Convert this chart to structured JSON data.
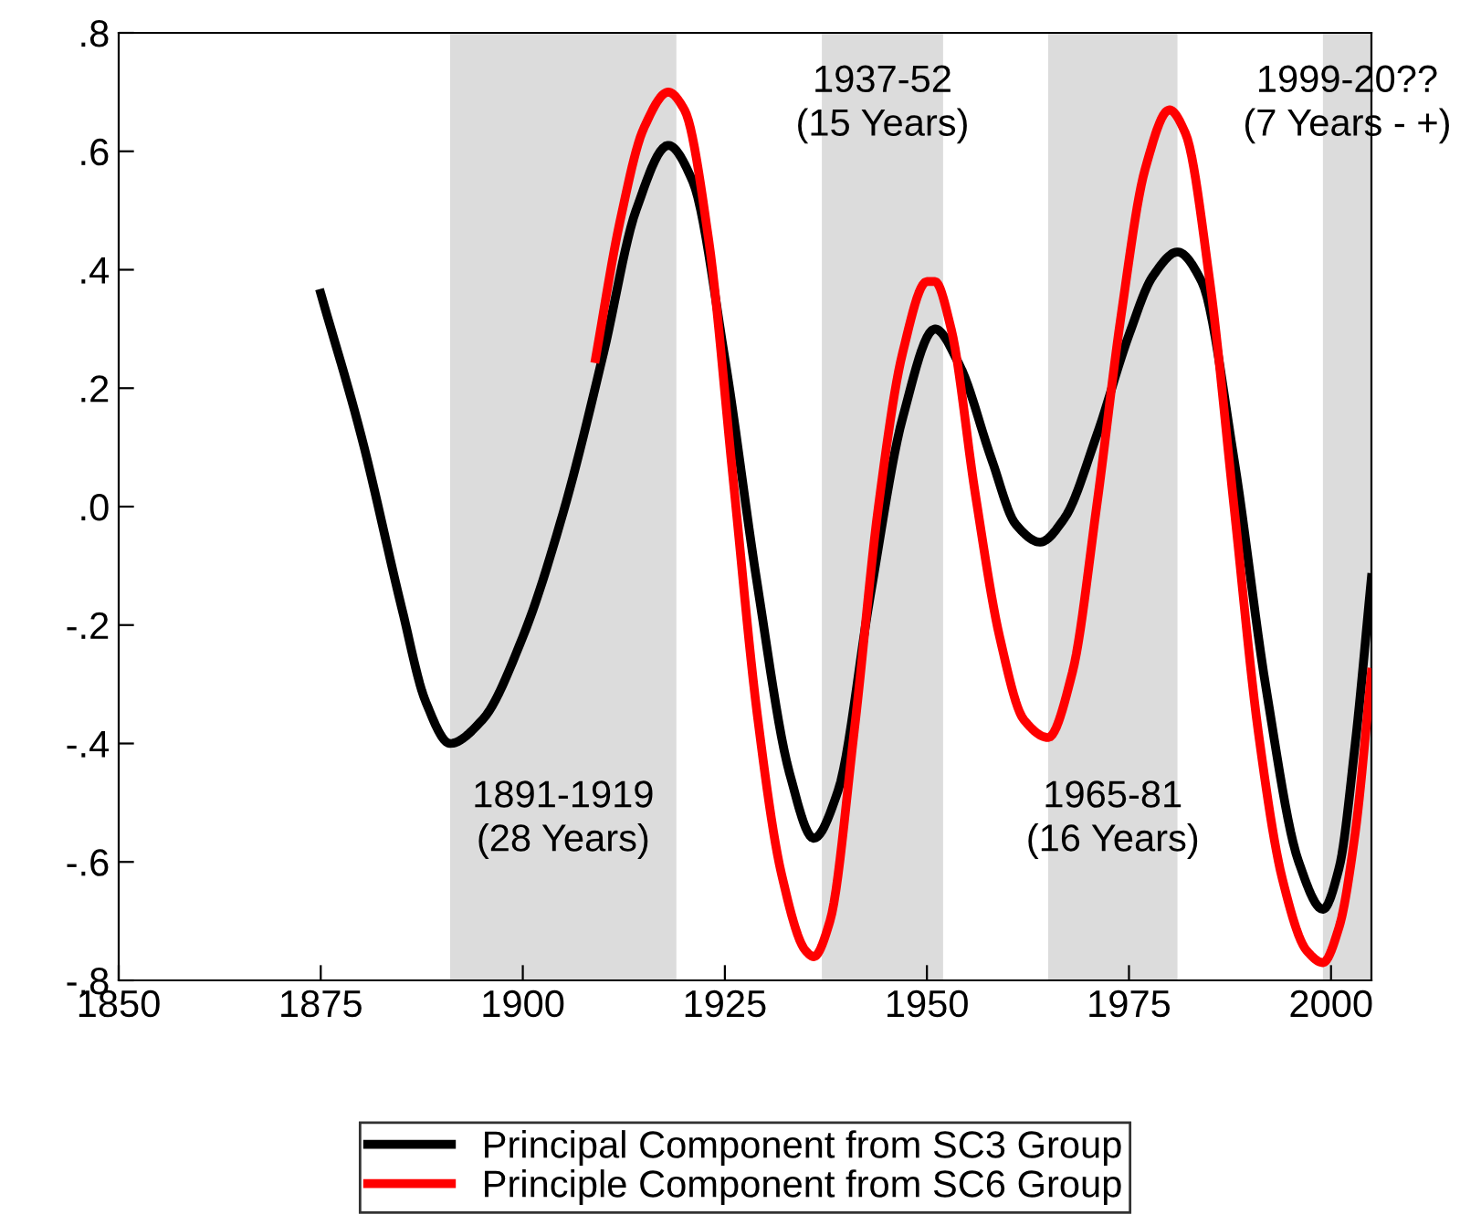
{
  "chart_data": {
    "type": "line",
    "legend": "bottom",
    "grid": false,
    "xlim": [
      1850,
      2005
    ],
    "xticks": [
      1850,
      1875,
      1900,
      1925,
      1950,
      1975,
      2000
    ],
    "ylim": [
      -0.8,
      0.8
    ],
    "yticks": [
      {
        "value": -0.8,
        "label": "-.8"
      },
      {
        "value": -0.6,
        "label": "-.6"
      },
      {
        "value": -0.4,
        "label": "-.4"
      },
      {
        "value": -0.2,
        "label": "-.2"
      },
      {
        "value": 0,
        "label": ".0"
      },
      {
        "value": 0.2,
        "label": ".2"
      },
      {
        "value": 0.4,
        "label": ".4"
      },
      {
        "value": 0.6,
        "label": ".6"
      },
      {
        "value": 0.8,
        "label": ".8"
      }
    ],
    "series": [
      {
        "name": "Principal Component from SC3 Group",
        "color": "#000000",
        "x": [
          1875,
          1880,
          1885,
          1888,
          1891,
          1895,
          1900,
          1905,
          1910,
          1914,
          1918,
          1921,
          1925,
          1929,
          1933,
          1936,
          1939,
          1943,
          1947,
          1951,
          1954,
          1958,
          1961,
          1964,
          1967,
          1971,
          1975,
          1978,
          1981,
          1984,
          1988,
          1992,
          1996,
          1999,
          2001,
          2003,
          2005
        ],
        "values": [
          0.36,
          0.12,
          -0.17,
          -0.33,
          -0.4,
          -0.36,
          -0.22,
          -0.01,
          0.26,
          0.5,
          0.61,
          0.55,
          0.25,
          -0.13,
          -0.45,
          -0.56,
          -0.48,
          -0.15,
          0.15,
          0.3,
          0.24,
          0.08,
          -0.03,
          -0.06,
          -0.02,
          0.12,
          0.29,
          0.39,
          0.43,
          0.38,
          0.08,
          -0.31,
          -0.6,
          -0.68,
          -0.61,
          -0.4,
          -0.12
        ]
      },
      {
        "name": "Principle Component from SC6 Group",
        "color": "#ff0000",
        "x": [
          1909,
          1912,
          1915,
          1918,
          1920,
          1923,
          1926,
          1929,
          1932,
          1935,
          1936,
          1938,
          1941,
          1944,
          1947,
          1950,
          1951,
          1953,
          1956,
          1959,
          1962,
          1965,
          1968,
          1971,
          1974,
          1977,
          1980,
          1982,
          1985,
          1988,
          1991,
          1994,
          1997,
          1999,
          2001,
          2003,
          2005
        ],
        "values": [
          0.25,
          0.48,
          0.64,
          0.7,
          0.67,
          0.45,
          0.05,
          -0.35,
          -0.62,
          -0.75,
          -0.76,
          -0.7,
          -0.38,
          0.0,
          0.26,
          0.38,
          0.38,
          0.3,
          0.02,
          -0.22,
          -0.36,
          -0.39,
          -0.28,
          0.0,
          0.32,
          0.57,
          0.67,
          0.63,
          0.38,
          0.0,
          -0.38,
          -0.63,
          -0.75,
          -0.77,
          -0.71,
          -0.55,
          -0.28
        ]
      }
    ],
    "bands": [
      {
        "axis": "x",
        "from": 1891,
        "to": 1919,
        "color": "#dcdcdc",
        "label": "1891-1919\n(28 Years)"
      },
      {
        "axis": "x",
        "from": 1937,
        "to": 1952,
        "color": "#dcdcdc",
        "label": "1937-52\n(15 Years)"
      },
      {
        "axis": "x",
        "from": 1965,
        "to": 1981,
        "color": "#dcdcdc",
        "label": "1965-81\n(16 Years)"
      },
      {
        "axis": "x",
        "from": 1999,
        "to": 2005,
        "color": "#dcdcdc",
        "label": "1999-20??\n(7 Years - +)"
      }
    ]
  }
}
